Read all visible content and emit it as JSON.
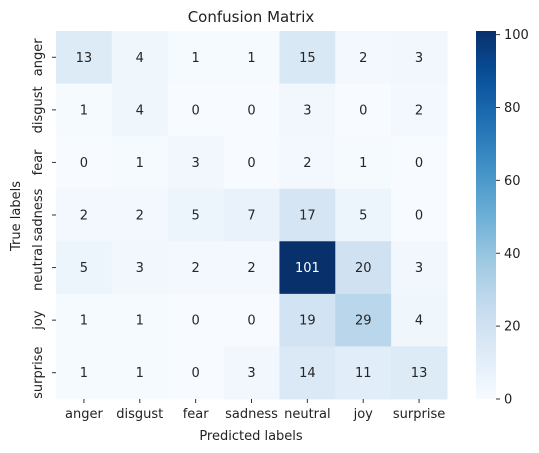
{
  "chart_data": {
    "type": "heatmap",
    "title": "Confusion Matrix",
    "xlabel": "Predicted labels",
    "ylabel": "True labels",
    "x_categories": [
      "anger",
      "disgust",
      "fear",
      "sadness",
      "neutral",
      "joy",
      "surprise"
    ],
    "y_categories": [
      "anger",
      "disgust",
      "fear",
      "sadness",
      "neutral",
      "joy",
      "surprise"
    ],
    "values": [
      [
        13,
        4,
        1,
        1,
        15,
        2,
        3
      ],
      [
        1,
        4,
        0,
        0,
        3,
        0,
        2
      ],
      [
        0,
        1,
        3,
        0,
        2,
        1,
        0
      ],
      [
        2,
        2,
        5,
        7,
        17,
        5,
        0
      ],
      [
        5,
        3,
        2,
        2,
        101,
        20,
        3
      ],
      [
        1,
        1,
        0,
        0,
        19,
        29,
        4
      ],
      [
        1,
        1,
        0,
        3,
        14,
        11,
        13
      ]
    ],
    "colorbar": {
      "min": 0,
      "max": 101,
      "ticks": [
        0,
        20,
        40,
        60,
        80,
        100
      ],
      "colormap": "Blues"
    }
  }
}
